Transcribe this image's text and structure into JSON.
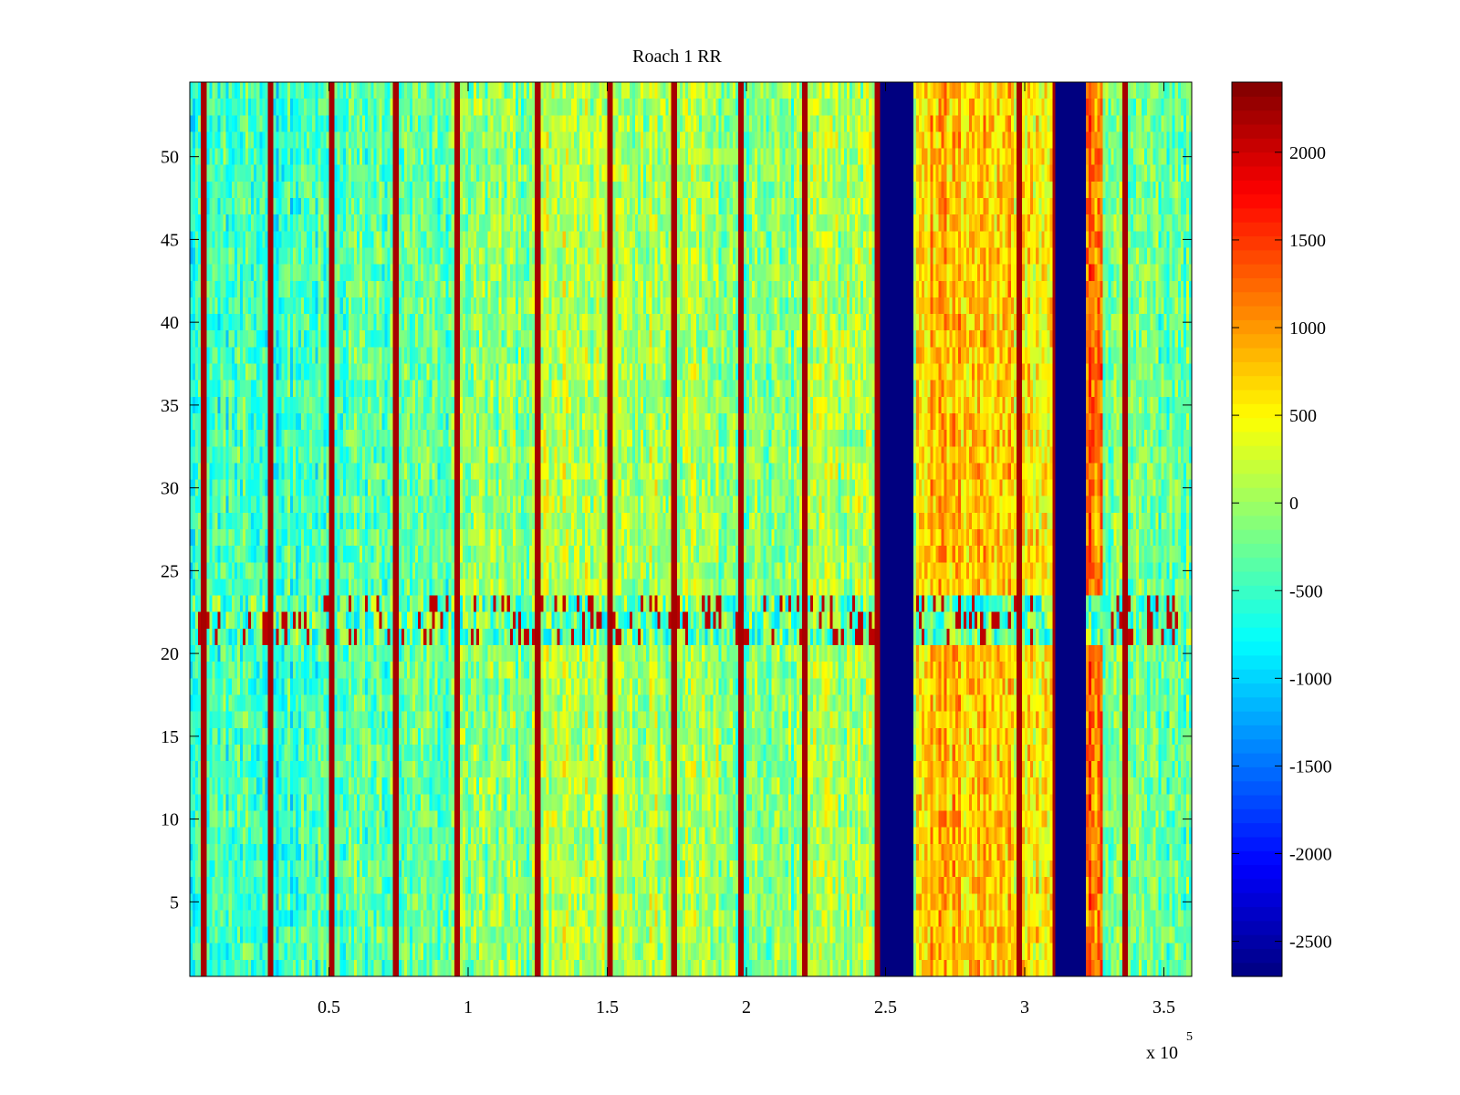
{
  "chart_data": {
    "type": "heatmap",
    "title": "Roach 1 RR",
    "xlabel": "",
    "ylabel": "",
    "x_exponent_label": "x 10",
    "x_exponent": "5",
    "xlim": [
      0,
      3.6
    ],
    "ylim": [
      0.5,
      54.5
    ],
    "x_ticks": [
      0.5,
      1,
      1.5,
      2,
      2.5,
      3,
      3.5
    ],
    "x_tick_labels": [
      "0.5",
      "1",
      "1.5",
      "2",
      "2.5",
      "3",
      "3.5"
    ],
    "y_ticks": [
      5,
      10,
      15,
      20,
      25,
      30,
      35,
      40,
      45,
      50
    ],
    "y_tick_labels": [
      "5",
      "10",
      "15",
      "20",
      "25",
      "30",
      "35",
      "40",
      "45",
      "50"
    ],
    "colorbar": {
      "colormap": "jet",
      "clim": [
        -2700,
        2400
      ],
      "ticks": [
        2000,
        1500,
        1000,
        500,
        0,
        -500,
        -1000,
        -1500,
        -2000,
        -2500
      ],
      "tick_labels": [
        "2000",
        "1500",
        "1000",
        "500",
        "0",
        "-500",
        "-1000",
        "-1500",
        "-2000",
        "-2500"
      ]
    },
    "rows": 54,
    "columns": 360,
    "x_unit_scale": 100000,
    "column_baseline_segments": [
      {
        "x_range": [
          0.0,
          0.55
        ],
        "value": -500
      },
      {
        "x_range": [
          0.55,
          0.95
        ],
        "value": -350
      },
      {
        "x_range": [
          0.95,
          1.25
        ],
        "value": -100
      },
      {
        "x_range": [
          1.25,
          1.9
        ],
        "value": 100
      },
      {
        "x_range": [
          1.9,
          2.2
        ],
        "value": -150
      },
      {
        "x_range": [
          2.2,
          2.47
        ],
        "value": 50
      },
      {
        "x_range": [
          2.61,
          2.95
        ],
        "value": 800
      },
      {
        "x_range": [
          2.95,
          3.1
        ],
        "value": 550
      },
      {
        "x_range": [
          3.22,
          3.28
        ],
        "value": 1200
      },
      {
        "x_range": [
          3.28,
          3.6
        ],
        "value": -250
      }
    ],
    "saturated_low_bands": [
      {
        "x_range": [
          2.48,
          2.6
        ],
        "value": -2700
      },
      {
        "x_range": [
          3.11,
          3.22
        ],
        "value": -2700
      }
    ],
    "high_value_vertical_lines": {
      "x": [
        0.05,
        0.29,
        0.51,
        0.74,
        0.96,
        1.25,
        1.51,
        1.74,
        1.98,
        2.21,
        2.47,
        2.98,
        3.11,
        3.36
      ],
      "value": 2200
    },
    "anomalous_rows": {
      "y_range": [
        21,
        23
      ],
      "mean_value": -300,
      "spike_value": 2100
    },
    "noise_amplitude": 450
  }
}
